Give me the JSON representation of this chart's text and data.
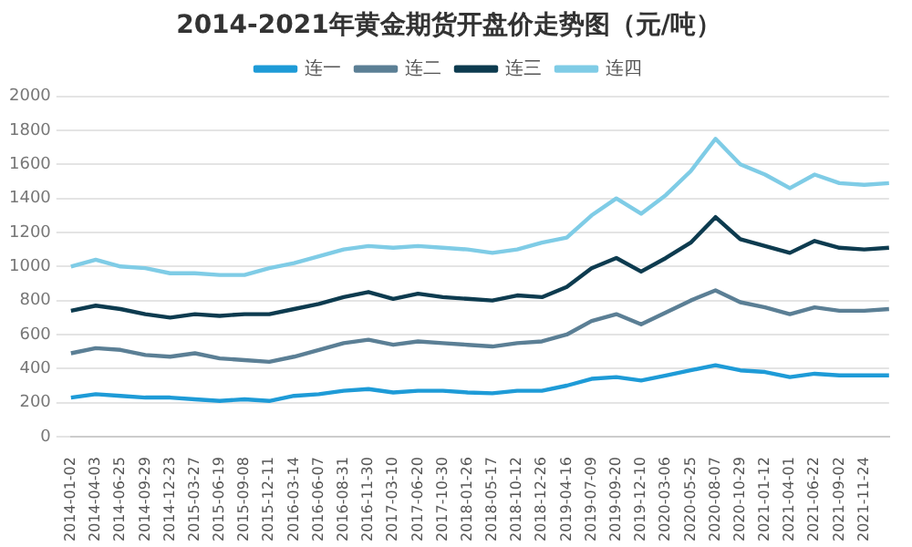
{
  "chart_data": {
    "type": "line",
    "title": "2014-2021年黄金期货开盘价走势图（元/吨）",
    "categories": [
      "2014-01-02",
      "2014-04-03",
      "2014-06-25",
      "2014-09-29",
      "2014-12-23",
      "2015-03-27",
      "2015-06-19",
      "2015-09-08",
      "2015-12-11",
      "2016-03-14",
      "2016-06-07",
      "2016-08-31",
      "2016-11-30",
      "2017-03-10",
      "2017-06-20",
      "2017-10-30",
      "2018-01-26",
      "2018-05-17",
      "2018-10-12",
      "2018-12-26",
      "2019-04-16",
      "2019-07-09",
      "2019-09-20",
      "2019-12-10",
      "2020-03-06",
      "2020-05-25",
      "2020-08-07",
      "2020-10-29",
      "2021-01-12",
      "2021-04-01",
      "2021-06-22",
      "2021-09-02",
      "2021-11-24",
      null
    ],
    "series": [
      {
        "name": "连一",
        "color": "#1e9bd7",
        "values": [
          230,
          250,
          240,
          230,
          230,
          220,
          210,
          220,
          210,
          240,
          250,
          270,
          280,
          260,
          270,
          270,
          260,
          255,
          270,
          270,
          300,
          340,
          350,
          330,
          360,
          390,
          420,
          390,
          380,
          350,
          370,
          360,
          360,
          360
        ]
      },
      {
        "name": "连二",
        "color": "#5b7f95",
        "values": [
          490,
          520,
          510,
          480,
          470,
          490,
          460,
          450,
          440,
          470,
          510,
          550,
          570,
          540,
          560,
          550,
          540,
          530,
          550,
          560,
          600,
          680,
          720,
          660,
          730,
          800,
          860,
          790,
          760,
          720,
          760,
          740,
          740,
          750
        ]
      },
      {
        "name": "连三",
        "color": "#0d3b4f",
        "values": [
          740,
          770,
          750,
          720,
          700,
          720,
          710,
          720,
          720,
          750,
          780,
          820,
          850,
          810,
          840,
          820,
          810,
          800,
          830,
          820,
          880,
          990,
          1050,
          970,
          1050,
          1140,
          1290,
          1160,
          1120,
          1080,
          1150,
          1110,
          1100,
          1110
        ]
      },
      {
        "name": "连四",
        "color": "#7fcce6",
        "values": [
          1000,
          1040,
          1000,
          990,
          960,
          960,
          950,
          950,
          990,
          1020,
          1060,
          1100,
          1120,
          1110,
          1120,
          1110,
          1100,
          1080,
          1100,
          1140,
          1170,
          1300,
          1400,
          1310,
          1420,
          1560,
          1750,
          1600,
          1540,
          1460,
          1540,
          1490,
          1480,
          1490
        ]
      }
    ],
    "ylim": [
      0,
      2000
    ],
    "yticks": [
      0,
      200,
      400,
      600,
      800,
      1000,
      1200,
      1400,
      1600,
      1800,
      2000
    ],
    "grid": "y",
    "legend": "top",
    "marker": "none",
    "line_style": "solid"
  }
}
